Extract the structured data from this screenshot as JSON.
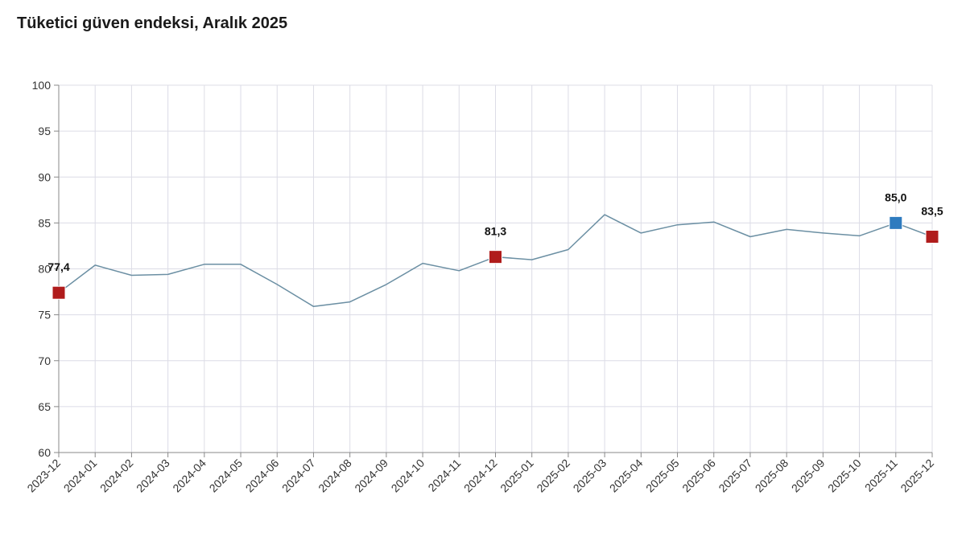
{
  "chart_data": {
    "type": "line",
    "title": "Tüketici güven endeksi, Aralık 2025",
    "xlabel": "",
    "ylabel": "",
    "ylim": [
      60,
      100
    ],
    "yticks": [
      60,
      65,
      70,
      75,
      80,
      85,
      90,
      95,
      100
    ],
    "grid": true,
    "categories": [
      "2023-12",
      "2024-01",
      "2024-02",
      "2024-03",
      "2024-04",
      "2024-05",
      "2024-06",
      "2024-07",
      "2024-08",
      "2024-09",
      "2024-10",
      "2024-11",
      "2024-12",
      "2025-01",
      "2025-02",
      "2025-03",
      "2025-04",
      "2025-05",
      "2025-06",
      "2025-07",
      "2025-08",
      "2025-09",
      "2025-10",
      "2025-11",
      "2025-12"
    ],
    "series": [
      {
        "values": [
          77.4,
          80.4,
          79.3,
          79.4,
          80.5,
          80.5,
          78.3,
          75.9,
          76.4,
          78.3,
          80.6,
          79.8,
          81.3,
          81.0,
          82.1,
          85.9,
          83.9,
          84.8,
          85.1,
          83.5,
          84.3,
          83.9,
          83.6,
          85.0,
          83.5
        ],
        "color": "#6b8fa3"
      }
    ],
    "highlights": [
      {
        "index": 0,
        "label": "77,4",
        "color": "#b01c1c"
      },
      {
        "index": 12,
        "label": "81,3",
        "color": "#b01c1c"
      },
      {
        "index": 23,
        "label": "85,0",
        "color": "#2e7bbf"
      },
      {
        "index": 24,
        "label": "83,5",
        "color": "#b01c1c"
      }
    ],
    "grid_color": "#dcdce6",
    "axis_color": "#888888"
  }
}
